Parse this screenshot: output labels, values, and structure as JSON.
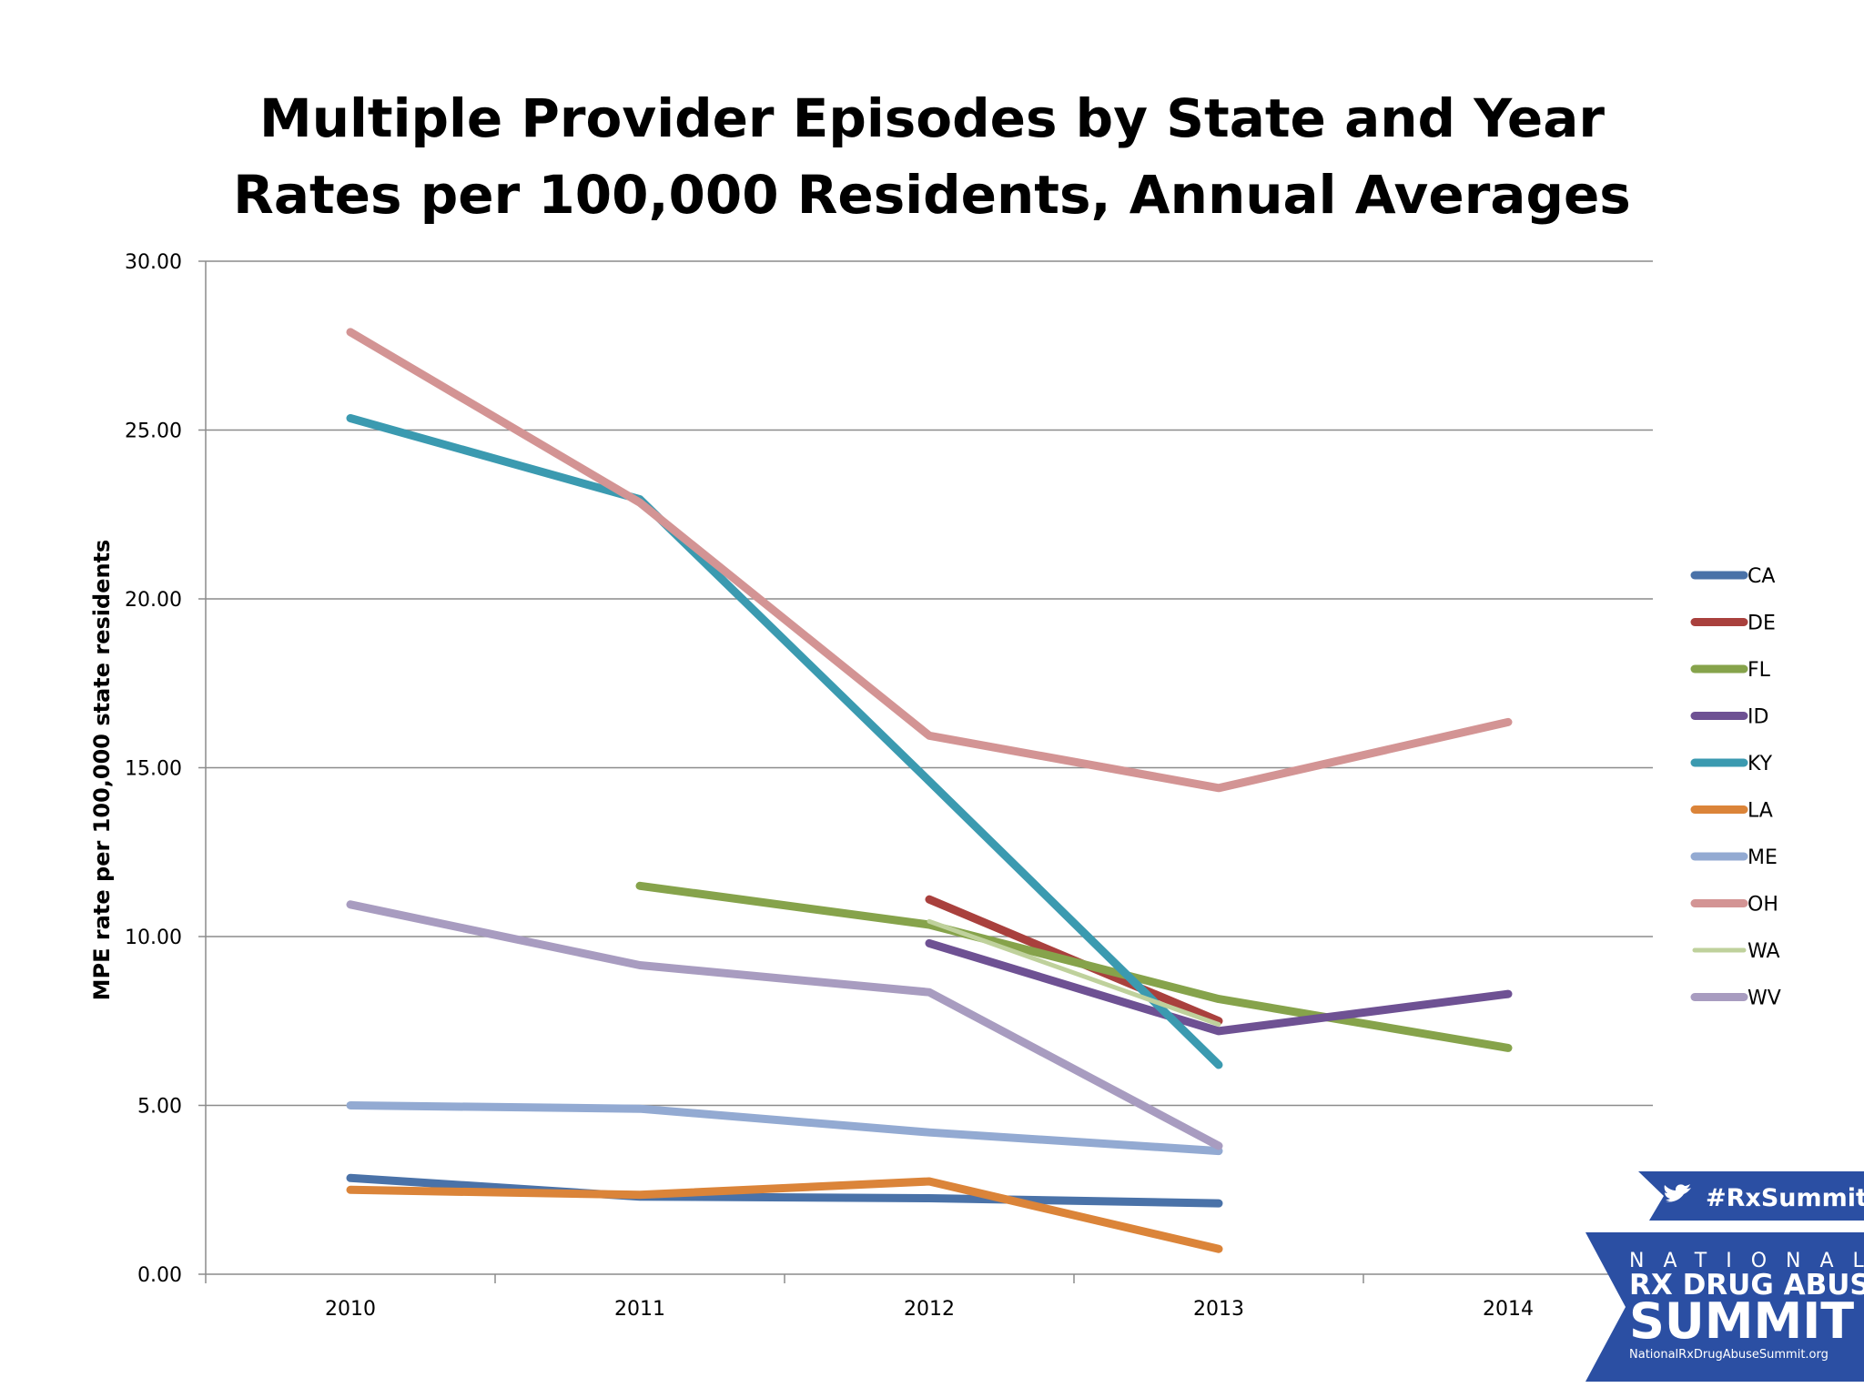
{
  "title_lines": [
    "Multiple Provider Episodes by State and Year",
    "Rates per 100,000 Residents, Annual Averages"
  ],
  "chart_data": {
    "type": "line",
    "title": "Multiple Provider Episodes by State and Year Rates per 100,000 Residents, Annual Averages",
    "xlabel": "",
    "ylabel": "MPE rate per 100,000 state residents",
    "x": [
      "2010",
      "2011",
      "2012",
      "2013",
      "2014"
    ],
    "ylim": [
      0,
      30
    ],
    "yticks": [
      "0.00",
      "5.00",
      "10.00",
      "15.00",
      "20.00",
      "25.00",
      "30.00"
    ],
    "grid": true,
    "legend_position": "right",
    "series": [
      {
        "name": "CA",
        "color": "#4A72A8",
        "values": [
          2.85,
          2.3,
          2.25,
          2.1,
          null
        ]
      },
      {
        "name": "DE",
        "color": "#A9403D",
        "values": [
          null,
          null,
          11.1,
          7.5,
          null
        ]
      },
      {
        "name": "FL",
        "color": "#86A34B",
        "values": [
          null,
          11.5,
          10.35,
          8.15,
          6.7
        ]
      },
      {
        "name": "ID",
        "color": "#6E5193",
        "values": [
          null,
          null,
          9.8,
          7.2,
          8.3
        ]
      },
      {
        "name": "KY",
        "color": "#3B9AB0",
        "values": [
          25.35,
          22.95,
          14.6,
          6.2,
          null
        ]
      },
      {
        "name": "LA",
        "color": "#DB8439",
        "values": [
          2.5,
          2.35,
          2.75,
          0.75,
          null
        ]
      },
      {
        "name": "ME",
        "color": "#93AAD2",
        "values": [
          5.0,
          4.9,
          4.2,
          3.65,
          null
        ]
      },
      {
        "name": "OH",
        "color": "#D39494",
        "values": [
          27.9,
          22.85,
          15.95,
          14.4,
          16.35
        ]
      },
      {
        "name": "WA",
        "color": "#BFD19C",
        "values": [
          null,
          null,
          10.45,
          7.4,
          null
        ]
      },
      {
        "name": "WV",
        "color": "#A89CC0",
        "values": [
          10.95,
          9.15,
          8.35,
          3.8,
          null
        ]
      }
    ]
  },
  "logo": {
    "hashtag": "#RxSummit",
    "line1": "NATIONAL",
    "line2": "RX DRUG ABUSE",
    "line3": "SUMMIT",
    "url": "NationalRxDrugAbuseSummit.org",
    "color": "#2B4FA3",
    "twitter_icon": "twitter-bird-icon"
  }
}
